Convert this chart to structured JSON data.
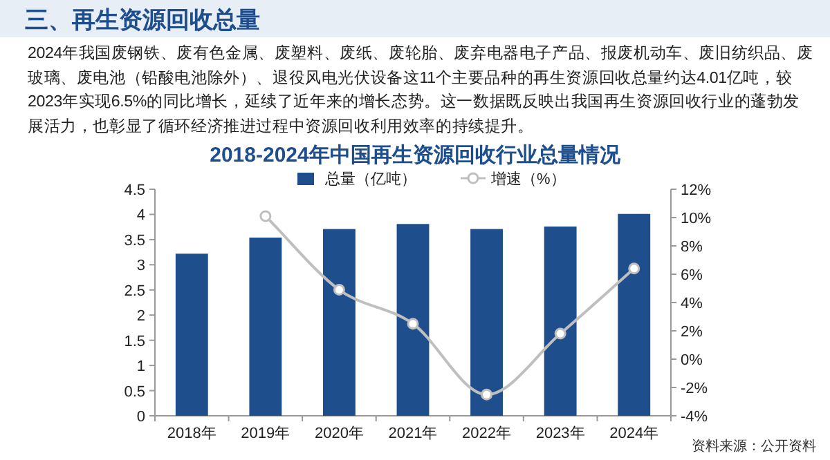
{
  "chart_data": {
    "type": "bar",
    "title": "2018-2024年中国再生资源回收行业总量情况",
    "annotations": [
      "三、再生资源回收总量",
      "2024年我国废钢铁、废有色金属、废塑料、废纸、废轮胎、废弃电器电子产品、报废机动车、废旧纺织品、废玻璃、废电池（铅酸电池除外）、退役风电光伏设备这11个主要品种的再生资源回收总量约达4.01亿吨，较2023年实现6.5%的同比增长，延续了近年来的增长态势。这一数据既反映出我国再生资源回收行业的蓬勃发展活力，也彰显了循环经济推进过程中资源回收利用效率的持续提升。",
      "资料来源：公开资料"
    ],
    "categories": [
      "2018年",
      "2019年",
      "2020年",
      "2021年",
      "2022年",
      "2023年",
      "2024年"
    ],
    "series": [
      {
        "name": "总量（亿吨）",
        "color": "#1f4e8c",
        "values": [
          3.22,
          3.54,
          3.71,
          3.81,
          3.71,
          3.76,
          4.01
        ]
      },
      {
        "name": "增速（%）",
        "type": "line",
        "axis": "y2",
        "color": "#bfbfbf",
        "marker": "circle",
        "values": [
          null,
          10.1,
          4.9,
          2.5,
          -2.5,
          1.8,
          6.4
        ]
      }
    ],
    "ylim": [
      0,
      4.5
    ],
    "yticks": [
      0,
      0.5,
      1,
      1.5,
      2,
      2.5,
      3,
      3.5,
      4,
      4.5
    ],
    "y2lim": [
      -4,
      12
    ],
    "y2ticks": [
      {
        "value": -4,
        "label": "-4%"
      },
      {
        "value": -2,
        "label": "-2%"
      },
      {
        "value": 0,
        "label": "0%"
      },
      {
        "value": 2,
        "label": "2%"
      },
      {
        "value": 4,
        "label": "4%"
      },
      {
        "value": 6,
        "label": "6%"
      },
      {
        "value": 8,
        "label": "8%"
      },
      {
        "value": 10,
        "label": "10%"
      },
      {
        "value": 12,
        "label": "12%"
      }
    ],
    "legend": "top",
    "grid": false
  }
}
